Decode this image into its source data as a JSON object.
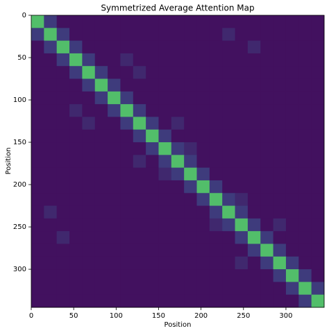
{
  "chart_data": {
    "type": "heatmap",
    "title": "Symmetrized Average Attention Map",
    "x_label": "Position",
    "y_label": "Position",
    "colormap": "viridis",
    "clim": [
      0,
      1
    ],
    "xlim": [
      0,
      345
    ],
    "ylim": [
      345,
      0
    ],
    "xticks": [
      0,
      50,
      100,
      150,
      200,
      250,
      300
    ],
    "yticks": [
      0,
      50,
      100,
      150,
      200,
      250,
      300
    ],
    "values": [
      [
        0.7,
        0.18,
        0.05,
        0.05,
        0.05,
        0.05,
        0.05,
        0.05,
        0.05,
        0.05,
        0.05,
        0.05,
        0.05,
        0.05,
        0.05,
        0.05,
        0.05,
        0.05,
        0.05,
        0.05,
        0.05,
        0.05,
        0.05
      ],
      [
        0.18,
        0.7,
        0.18,
        0.05,
        0.05,
        0.05,
        0.05,
        0.05,
        0.05,
        0.05,
        0.05,
        0.05,
        0.05,
        0.05,
        0.05,
        0.12,
        0.05,
        0.05,
        0.05,
        0.05,
        0.05,
        0.05,
        0.05
      ],
      [
        0.05,
        0.18,
        0.7,
        0.18,
        0.05,
        0.05,
        0.05,
        0.05,
        0.05,
        0.05,
        0.05,
        0.05,
        0.05,
        0.05,
        0.05,
        0.05,
        0.05,
        0.12,
        0.05,
        0.05,
        0.05,
        0.05,
        0.05
      ],
      [
        0.05,
        0.05,
        0.18,
        0.7,
        0.18,
        0.05,
        0.05,
        0.12,
        0.05,
        0.05,
        0.05,
        0.05,
        0.05,
        0.05,
        0.05,
        0.05,
        0.05,
        0.05,
        0.05,
        0.05,
        0.05,
        0.05,
        0.05
      ],
      [
        0.05,
        0.05,
        0.05,
        0.18,
        0.7,
        0.18,
        0.05,
        0.05,
        0.12,
        0.05,
        0.05,
        0.05,
        0.05,
        0.05,
        0.05,
        0.05,
        0.05,
        0.05,
        0.05,
        0.05,
        0.05,
        0.05,
        0.05
      ],
      [
        0.05,
        0.05,
        0.05,
        0.05,
        0.18,
        0.7,
        0.18,
        0.05,
        0.05,
        0.05,
        0.05,
        0.05,
        0.05,
        0.05,
        0.05,
        0.05,
        0.05,
        0.05,
        0.05,
        0.05,
        0.05,
        0.05,
        0.05
      ],
      [
        0.05,
        0.05,
        0.05,
        0.05,
        0.05,
        0.18,
        0.7,
        0.18,
        0.05,
        0.05,
        0.05,
        0.05,
        0.05,
        0.05,
        0.05,
        0.05,
        0.05,
        0.05,
        0.05,
        0.05,
        0.05,
        0.05,
        0.05
      ],
      [
        0.05,
        0.05,
        0.05,
        0.12,
        0.05,
        0.05,
        0.18,
        0.7,
        0.18,
        0.05,
        0.05,
        0.05,
        0.05,
        0.05,
        0.05,
        0.05,
        0.05,
        0.05,
        0.05,
        0.05,
        0.05,
        0.05,
        0.05
      ],
      [
        0.05,
        0.05,
        0.05,
        0.05,
        0.12,
        0.05,
        0.05,
        0.18,
        0.7,
        0.18,
        0.05,
        0.12,
        0.05,
        0.05,
        0.05,
        0.05,
        0.05,
        0.05,
        0.05,
        0.05,
        0.05,
        0.05,
        0.05
      ],
      [
        0.05,
        0.05,
        0.05,
        0.05,
        0.05,
        0.05,
        0.05,
        0.05,
        0.18,
        0.7,
        0.18,
        0.05,
        0.05,
        0.05,
        0.05,
        0.05,
        0.05,
        0.05,
        0.05,
        0.05,
        0.05,
        0.05,
        0.05
      ],
      [
        0.05,
        0.05,
        0.05,
        0.05,
        0.05,
        0.05,
        0.05,
        0.05,
        0.05,
        0.18,
        0.7,
        0.18,
        0.12,
        0.05,
        0.05,
        0.05,
        0.05,
        0.05,
        0.05,
        0.05,
        0.05,
        0.05,
        0.05
      ],
      [
        0.05,
        0.05,
        0.05,
        0.05,
        0.05,
        0.05,
        0.05,
        0.05,
        0.12,
        0.05,
        0.18,
        0.7,
        0.18,
        0.05,
        0.05,
        0.05,
        0.05,
        0.05,
        0.05,
        0.05,
        0.05,
        0.05,
        0.05
      ],
      [
        0.05,
        0.05,
        0.05,
        0.05,
        0.05,
        0.05,
        0.05,
        0.05,
        0.05,
        0.05,
        0.12,
        0.18,
        0.7,
        0.18,
        0.05,
        0.05,
        0.05,
        0.05,
        0.05,
        0.05,
        0.05,
        0.05,
        0.05
      ],
      [
        0.05,
        0.05,
        0.05,
        0.05,
        0.05,
        0.05,
        0.05,
        0.05,
        0.05,
        0.05,
        0.05,
        0.05,
        0.18,
        0.7,
        0.18,
        0.05,
        0.05,
        0.05,
        0.05,
        0.05,
        0.05,
        0.05,
        0.05
      ],
      [
        0.05,
        0.05,
        0.05,
        0.05,
        0.05,
        0.05,
        0.05,
        0.05,
        0.05,
        0.05,
        0.05,
        0.05,
        0.05,
        0.18,
        0.7,
        0.18,
        0.12,
        0.05,
        0.05,
        0.05,
        0.05,
        0.05,
        0.05
      ],
      [
        0.05,
        0.12,
        0.05,
        0.05,
        0.05,
        0.05,
        0.05,
        0.05,
        0.05,
        0.05,
        0.05,
        0.05,
        0.05,
        0.05,
        0.18,
        0.7,
        0.18,
        0.05,
        0.05,
        0.05,
        0.05,
        0.05,
        0.05
      ],
      [
        0.05,
        0.05,
        0.05,
        0.05,
        0.05,
        0.05,
        0.05,
        0.05,
        0.05,
        0.05,
        0.05,
        0.05,
        0.05,
        0.05,
        0.12,
        0.18,
        0.7,
        0.18,
        0.05,
        0.12,
        0.05,
        0.05,
        0.05
      ],
      [
        0.05,
        0.05,
        0.12,
        0.05,
        0.05,
        0.05,
        0.05,
        0.05,
        0.05,
        0.05,
        0.05,
        0.05,
        0.05,
        0.05,
        0.05,
        0.05,
        0.18,
        0.7,
        0.18,
        0.05,
        0.05,
        0.05,
        0.05
      ],
      [
        0.05,
        0.05,
        0.05,
        0.05,
        0.05,
        0.05,
        0.05,
        0.05,
        0.05,
        0.05,
        0.05,
        0.05,
        0.05,
        0.05,
        0.05,
        0.05,
        0.05,
        0.18,
        0.7,
        0.18,
        0.05,
        0.05,
        0.05
      ],
      [
        0.05,
        0.05,
        0.05,
        0.05,
        0.05,
        0.05,
        0.05,
        0.05,
        0.05,
        0.05,
        0.05,
        0.05,
        0.05,
        0.05,
        0.05,
        0.05,
        0.12,
        0.05,
        0.18,
        0.7,
        0.18,
        0.05,
        0.05
      ],
      [
        0.05,
        0.05,
        0.05,
        0.05,
        0.05,
        0.05,
        0.05,
        0.05,
        0.05,
        0.05,
        0.05,
        0.05,
        0.05,
        0.05,
        0.05,
        0.05,
        0.05,
        0.05,
        0.05,
        0.18,
        0.7,
        0.18,
        0.05
      ],
      [
        0.05,
        0.05,
        0.05,
        0.05,
        0.05,
        0.05,
        0.05,
        0.05,
        0.05,
        0.05,
        0.05,
        0.05,
        0.05,
        0.05,
        0.05,
        0.05,
        0.05,
        0.05,
        0.05,
        0.05,
        0.18,
        0.7,
        0.18
      ],
      [
        0.05,
        0.05,
        0.05,
        0.05,
        0.05,
        0.05,
        0.05,
        0.05,
        0.05,
        0.05,
        0.05,
        0.05,
        0.05,
        0.05,
        0.05,
        0.05,
        0.05,
        0.05,
        0.05,
        0.05,
        0.05,
        0.18,
        0.7
      ]
    ]
  }
}
